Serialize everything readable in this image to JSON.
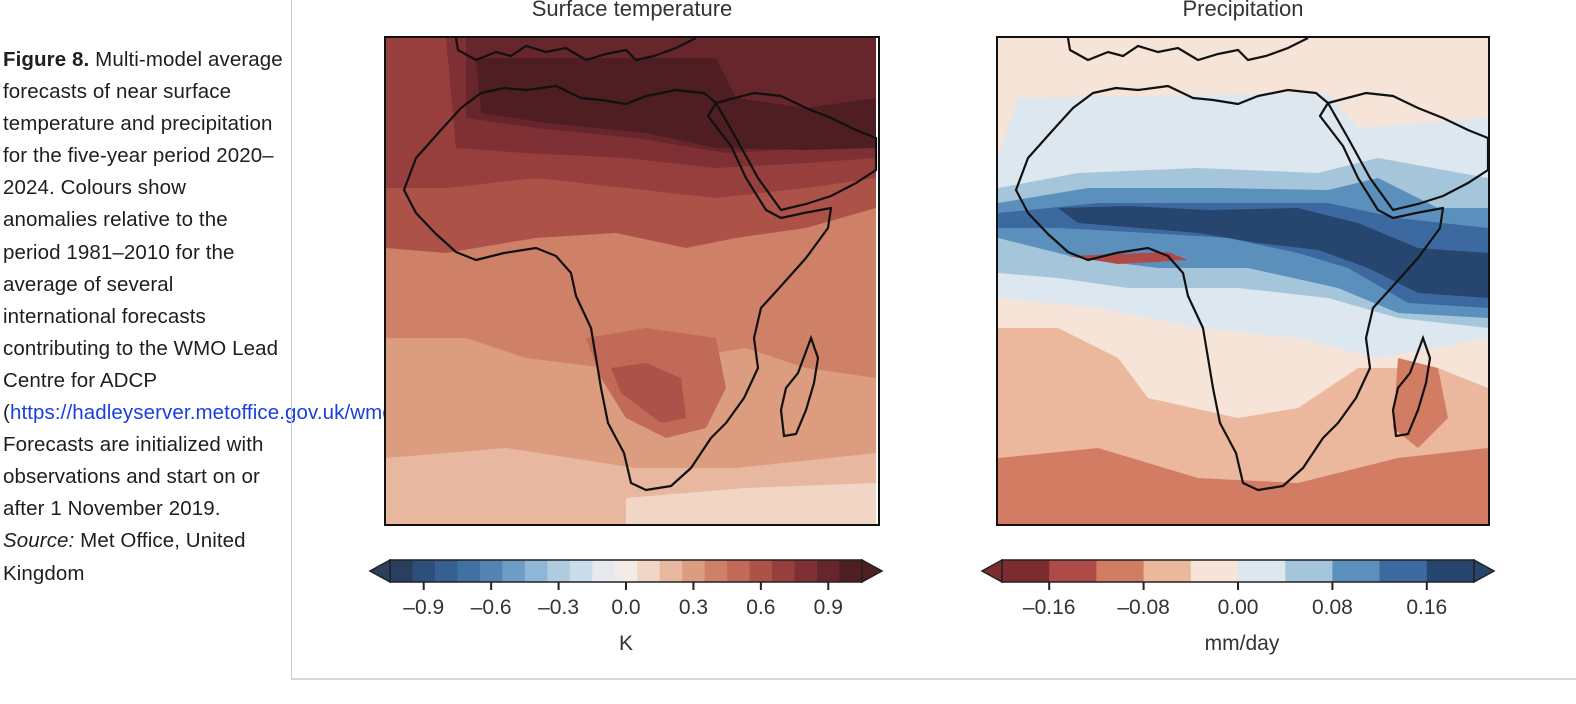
{
  "caption": {
    "figure_label": "Figure 8.",
    "text_1": " Multi-model average forecasts of near surface temperature and precipitation for the five-year period 2020–2024. Colours show anomalies relative to the period 1981–2010 for the average of several international forecasts contributing to the WMO Lead Centre for ADCP (",
    "link_text": "https://hadleyserver.metoffice.gov.uk/wmolc/",
    "text_2": "). Forecasts are initialized with observations and start on or after 1 November 2019. ",
    "source_label": "Source:",
    "source_text": " Met Office, United Kingdom",
    "link_color": "#1a3fe0"
  },
  "chart_data": [
    {
      "type": "heatmap",
      "title": "Surface temperature",
      "region": "Africa",
      "colorbar": {
        "unit": "K",
        "ticks": [
          -0.9,
          -0.6,
          -0.3,
          0.0,
          0.3,
          0.6,
          0.9
        ],
        "tick_labels": [
          "–0.9",
          "–0.6",
          "–0.3",
          "0.0",
          "0.3",
          "0.6",
          "0.9"
        ],
        "range": [
          -1.05,
          1.05
        ],
        "extend": "both",
        "levels": 21,
        "colors": [
          "#2a3f5f",
          "#2e4e7c",
          "#365f92",
          "#4170a3",
          "#5584b4",
          "#6d9cc6",
          "#8fb6d6",
          "#aecbe0",
          "#cbdcea",
          "#e6eaee",
          "#f2ebe6",
          "#f1d6c6",
          "#e8b79f",
          "#dc9c80",
          "#cf8168",
          "#c06a57",
          "#ad5249",
          "#973f3d",
          "#7f3034",
          "#67262b",
          "#4e1e23"
        ]
      },
      "description": "Warm anomalies across the region; strongest (≥0.9 K) over North Africa and Arabia, secondary maximum (~0.6 K) over southern Africa, weakest near the southern ocean edge"
    },
    {
      "type": "heatmap",
      "title": "Precipitation",
      "region": "Africa",
      "colorbar": {
        "unit": "mm/day",
        "ticks": [
          -0.16,
          -0.08,
          0.0,
          0.08,
          0.16
        ],
        "tick_labels": [
          "–0.16",
          "–0.08",
          "0.00",
          "0.08",
          "0.16"
        ],
        "range": [
          -0.2,
          0.2
        ],
        "extend": "both",
        "levels": 10,
        "colors": [
          "#7c2b2e",
          "#b04a47",
          "#d27d63",
          "#ebb89d",
          "#f6e4d9",
          "#dce7ef",
          "#a5c6da",
          "#5b90bd",
          "#3c6aa0",
          "#26466f"
        ]
      },
      "description": "Wet anomalies (>0.16 mm/day) in a band across the Sahel and over East Africa / western Indian Ocean; dry anomalies along the Guinea coast, southern Africa, Madagascar and southern oceans"
    }
  ]
}
